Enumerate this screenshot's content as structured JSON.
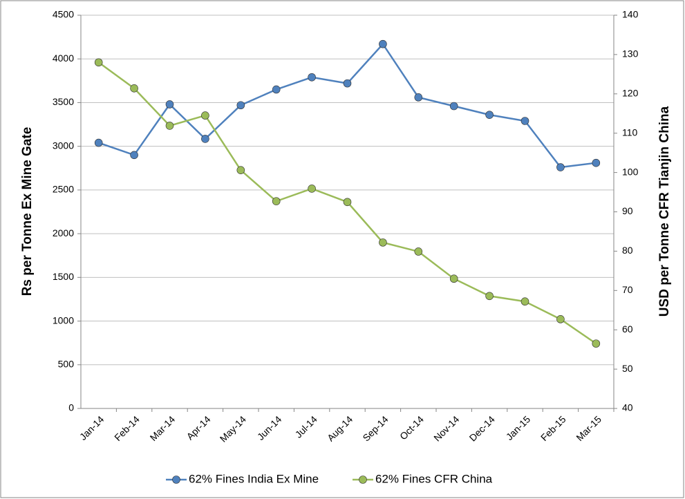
{
  "chart_data": {
    "type": "line",
    "ylabel": "Rs per Tonne Ex Mine Gate",
    "y2label": "USD per Tonne CFR Tianjin China",
    "categories": [
      "Jan-14",
      "Feb-14",
      "Mar-14",
      "Apr-14",
      "May-14",
      "Jun-14",
      "Jul-14",
      "Aug-14",
      "Sep-14",
      "Oct-14",
      "Nov-14",
      "Dec-14",
      "Jan-15",
      "Feb-15",
      "Mar-15"
    ],
    "series": [
      {
        "name": "62% Fines India Ex Mine",
        "color": "#4f81bd",
        "values": [
          3040,
          2900,
          3480,
          3085,
          3470,
          3650,
          3790,
          3720,
          4170,
          3560,
          3460,
          3360,
          3290,
          2760,
          2810
        ]
      },
      {
        "name": "62% Fines CFR China",
        "color": "#9bbb59",
        "axis": "y2",
        "values": [
          128,
          121.4,
          111.9,
          114.5,
          100.6,
          92.7,
          95.9,
          92.5,
          82.2,
          79.9,
          73,
          68.6,
          67.2,
          62.7,
          56.5
        ]
      }
    ],
    "ylim": [
      0,
      4500
    ],
    "yticks": [
      0,
      500,
      1000,
      1500,
      2000,
      2500,
      3000,
      3500,
      4000,
      4500
    ],
    "y2lim": [
      40,
      140
    ],
    "y2ticks": [
      40,
      50,
      60,
      70,
      80,
      90,
      100,
      110,
      120,
      130,
      140
    ],
    "grid": true,
    "legend": "bottom"
  }
}
